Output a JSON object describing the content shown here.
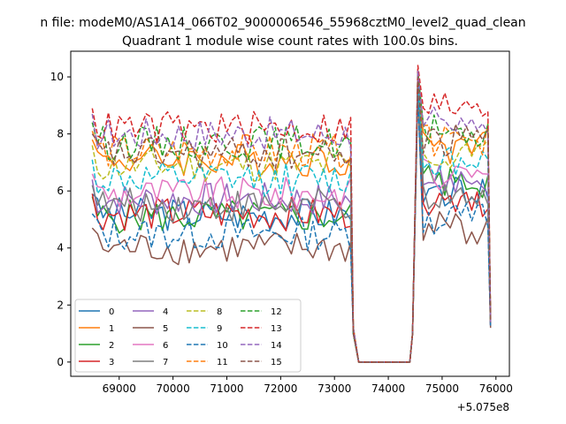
{
  "page": {
    "suptitle": "n file: modeM0/AS1A14_066T02_9000006546_55968cztM0_level2_quad_clean",
    "title": "Quadrant 1 module wise count rates with 100.0s bins.",
    "offset_label": "+5.075e8"
  },
  "chart_data": {
    "type": "line",
    "title": "Quadrant 1 module wise count rates with 100.0s bins.",
    "xlabel": "",
    "ylabel": "",
    "x_offset": 507500000,
    "xlim": [
      68100,
      76250
    ],
    "ylim": [
      -0.5,
      10.9
    ],
    "xticks": [
      69000,
      70000,
      71000,
      72000,
      73000,
      74000,
      75000,
      76000
    ],
    "xtick_labels": [
      "69000",
      "70000",
      "71000",
      "72000",
      "73000",
      "74000",
      "75000",
      "76000"
    ],
    "yticks": [
      0,
      2,
      4,
      6,
      8,
      10
    ],
    "ytick_labels": [
      "0",
      "2",
      "4",
      "6",
      "8",
      "10"
    ],
    "grid": false,
    "legend_position": "lower-left",
    "legend_columns": 4,
    "segments": {
      "active1": [
        68500,
        73300
      ],
      "drop": [
        73350,
        73450
      ],
      "gap": [
        73450,
        74400
      ],
      "rise": [
        74450,
        74500
      ],
      "active2": [
        74550,
        75850
      ],
      "x_step": 100
    },
    "series": [
      {
        "name": "0",
        "color": "#1f77b4",
        "dash": "solid",
        "level1": 5.2,
        "level2": 6.0,
        "peak": 10.0,
        "end": 1.3
      },
      {
        "name": "1",
        "color": "#ff7f0e",
        "dash": "solid",
        "level1": 7.1,
        "level2": 7.5,
        "peak": 10.0,
        "end": 1.4
      },
      {
        "name": "2",
        "color": "#2ca02c",
        "dash": "solid",
        "level1": 5.1,
        "level2": 6.3,
        "peak": 9.7,
        "end": 1.4
      },
      {
        "name": "3",
        "color": "#d62728",
        "dash": "solid",
        "level1": 5.2,
        "level2": 5.5,
        "peak": 9.8,
        "end": 1.3
      },
      {
        "name": "4",
        "color": "#9467bd",
        "dash": "solid",
        "level1": 5.7,
        "level2": 6.4,
        "peak": 9.9,
        "end": 1.4
      },
      {
        "name": "5",
        "color": "#8c564b",
        "dash": "solid",
        "level1": 4.0,
        "level2": 4.7,
        "peak": 9.5,
        "end": 1.2
      },
      {
        "name": "6",
        "color": "#e377c2",
        "dash": "solid",
        "level1": 5.9,
        "level2": 6.6,
        "peak": 9.9,
        "end": 1.3
      },
      {
        "name": "7",
        "color": "#7f7f7f",
        "dash": "solid",
        "level1": 5.5,
        "level2": 5.9,
        "peak": 9.6,
        "end": 1.3
      },
      {
        "name": "8",
        "color": "#bcbd22",
        "dash": "dashed",
        "level1": 6.9,
        "level2": 7.3,
        "peak": 10.0,
        "end": 1.4
      },
      {
        "name": "9",
        "color": "#17becf",
        "dash": "dashed",
        "level1": 6.4,
        "level2": 7.0,
        "peak": 10.0,
        "end": 1.4
      },
      {
        "name": "10",
        "color": "#1f77b4",
        "dash": "dashed",
        "level1": 4.5,
        "level2": 5.0,
        "peak": 9.3,
        "end": 1.2
      },
      {
        "name": "11",
        "color": "#ff7f0e",
        "dash": "dashed",
        "level1": 7.4,
        "level2": 7.8,
        "peak": 10.2,
        "end": 1.4
      },
      {
        "name": "12",
        "color": "#2ca02c",
        "dash": "dashed",
        "level1": 7.7,
        "level2": 8.1,
        "peak": 10.2,
        "end": 1.4
      },
      {
        "name": "13",
        "color": "#d62728",
        "dash": "dashed",
        "level1": 8.2,
        "level2": 8.9,
        "peak": 10.4,
        "end": 1.5
      },
      {
        "name": "14",
        "color": "#9467bd",
        "dash": "dashed",
        "level1": 8.0,
        "level2": 8.5,
        "peak": 10.2,
        "end": 1.4
      },
      {
        "name": "15",
        "color": "#8c564b",
        "dash": "dashed",
        "level1": 7.3,
        "level2": 7.8,
        "peak": 10.0,
        "end": 1.4
      }
    ]
  }
}
